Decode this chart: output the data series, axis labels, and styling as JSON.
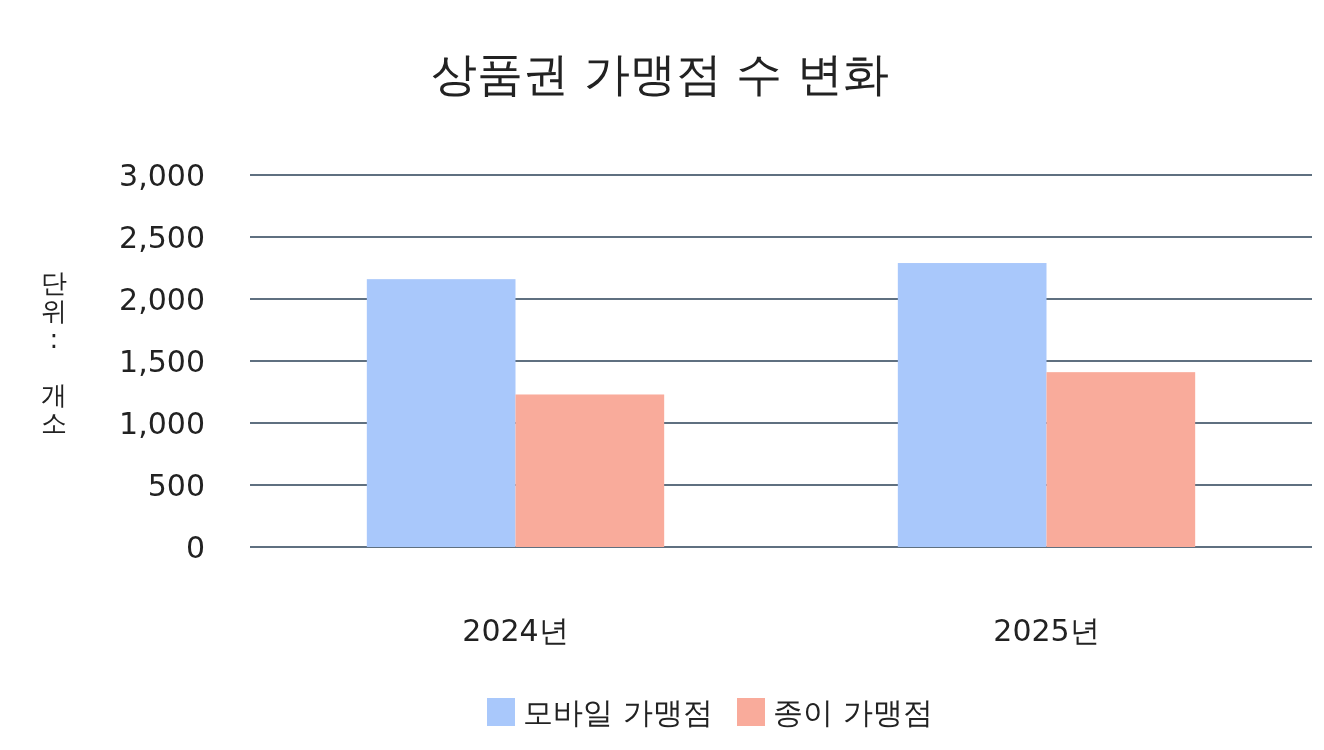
{
  "chart_data": {
    "type": "bar",
    "title": "상품권 가맹점 수 변화",
    "ylabel": "단위: 개소",
    "categories": [
      "2024년",
      "2025년"
    ],
    "series": [
      {
        "name": "모바일 가맹점",
        "color": "#a9c8fb",
        "values": [
          2160,
          2290
        ]
      },
      {
        "name": "종이 가맹점",
        "color": "#f9ab9b",
        "values": [
          1230,
          1410
        ]
      }
    ],
    "ylim": [
      0,
      3000
    ],
    "yticks": [
      0,
      {
        "value": 500,
        "label": "500"
      },
      {
        "value": 1000,
        "label": "1,000"
      },
      {
        "value": 1500,
        "label": "1,500"
      },
      {
        "value": 2000,
        "label": "2,000"
      },
      {
        "value": 2500,
        "label": "2,500"
      },
      {
        "value": 3000,
        "label": "3,000"
      }
    ],
    "grid": "y",
    "legend": "bottom"
  }
}
